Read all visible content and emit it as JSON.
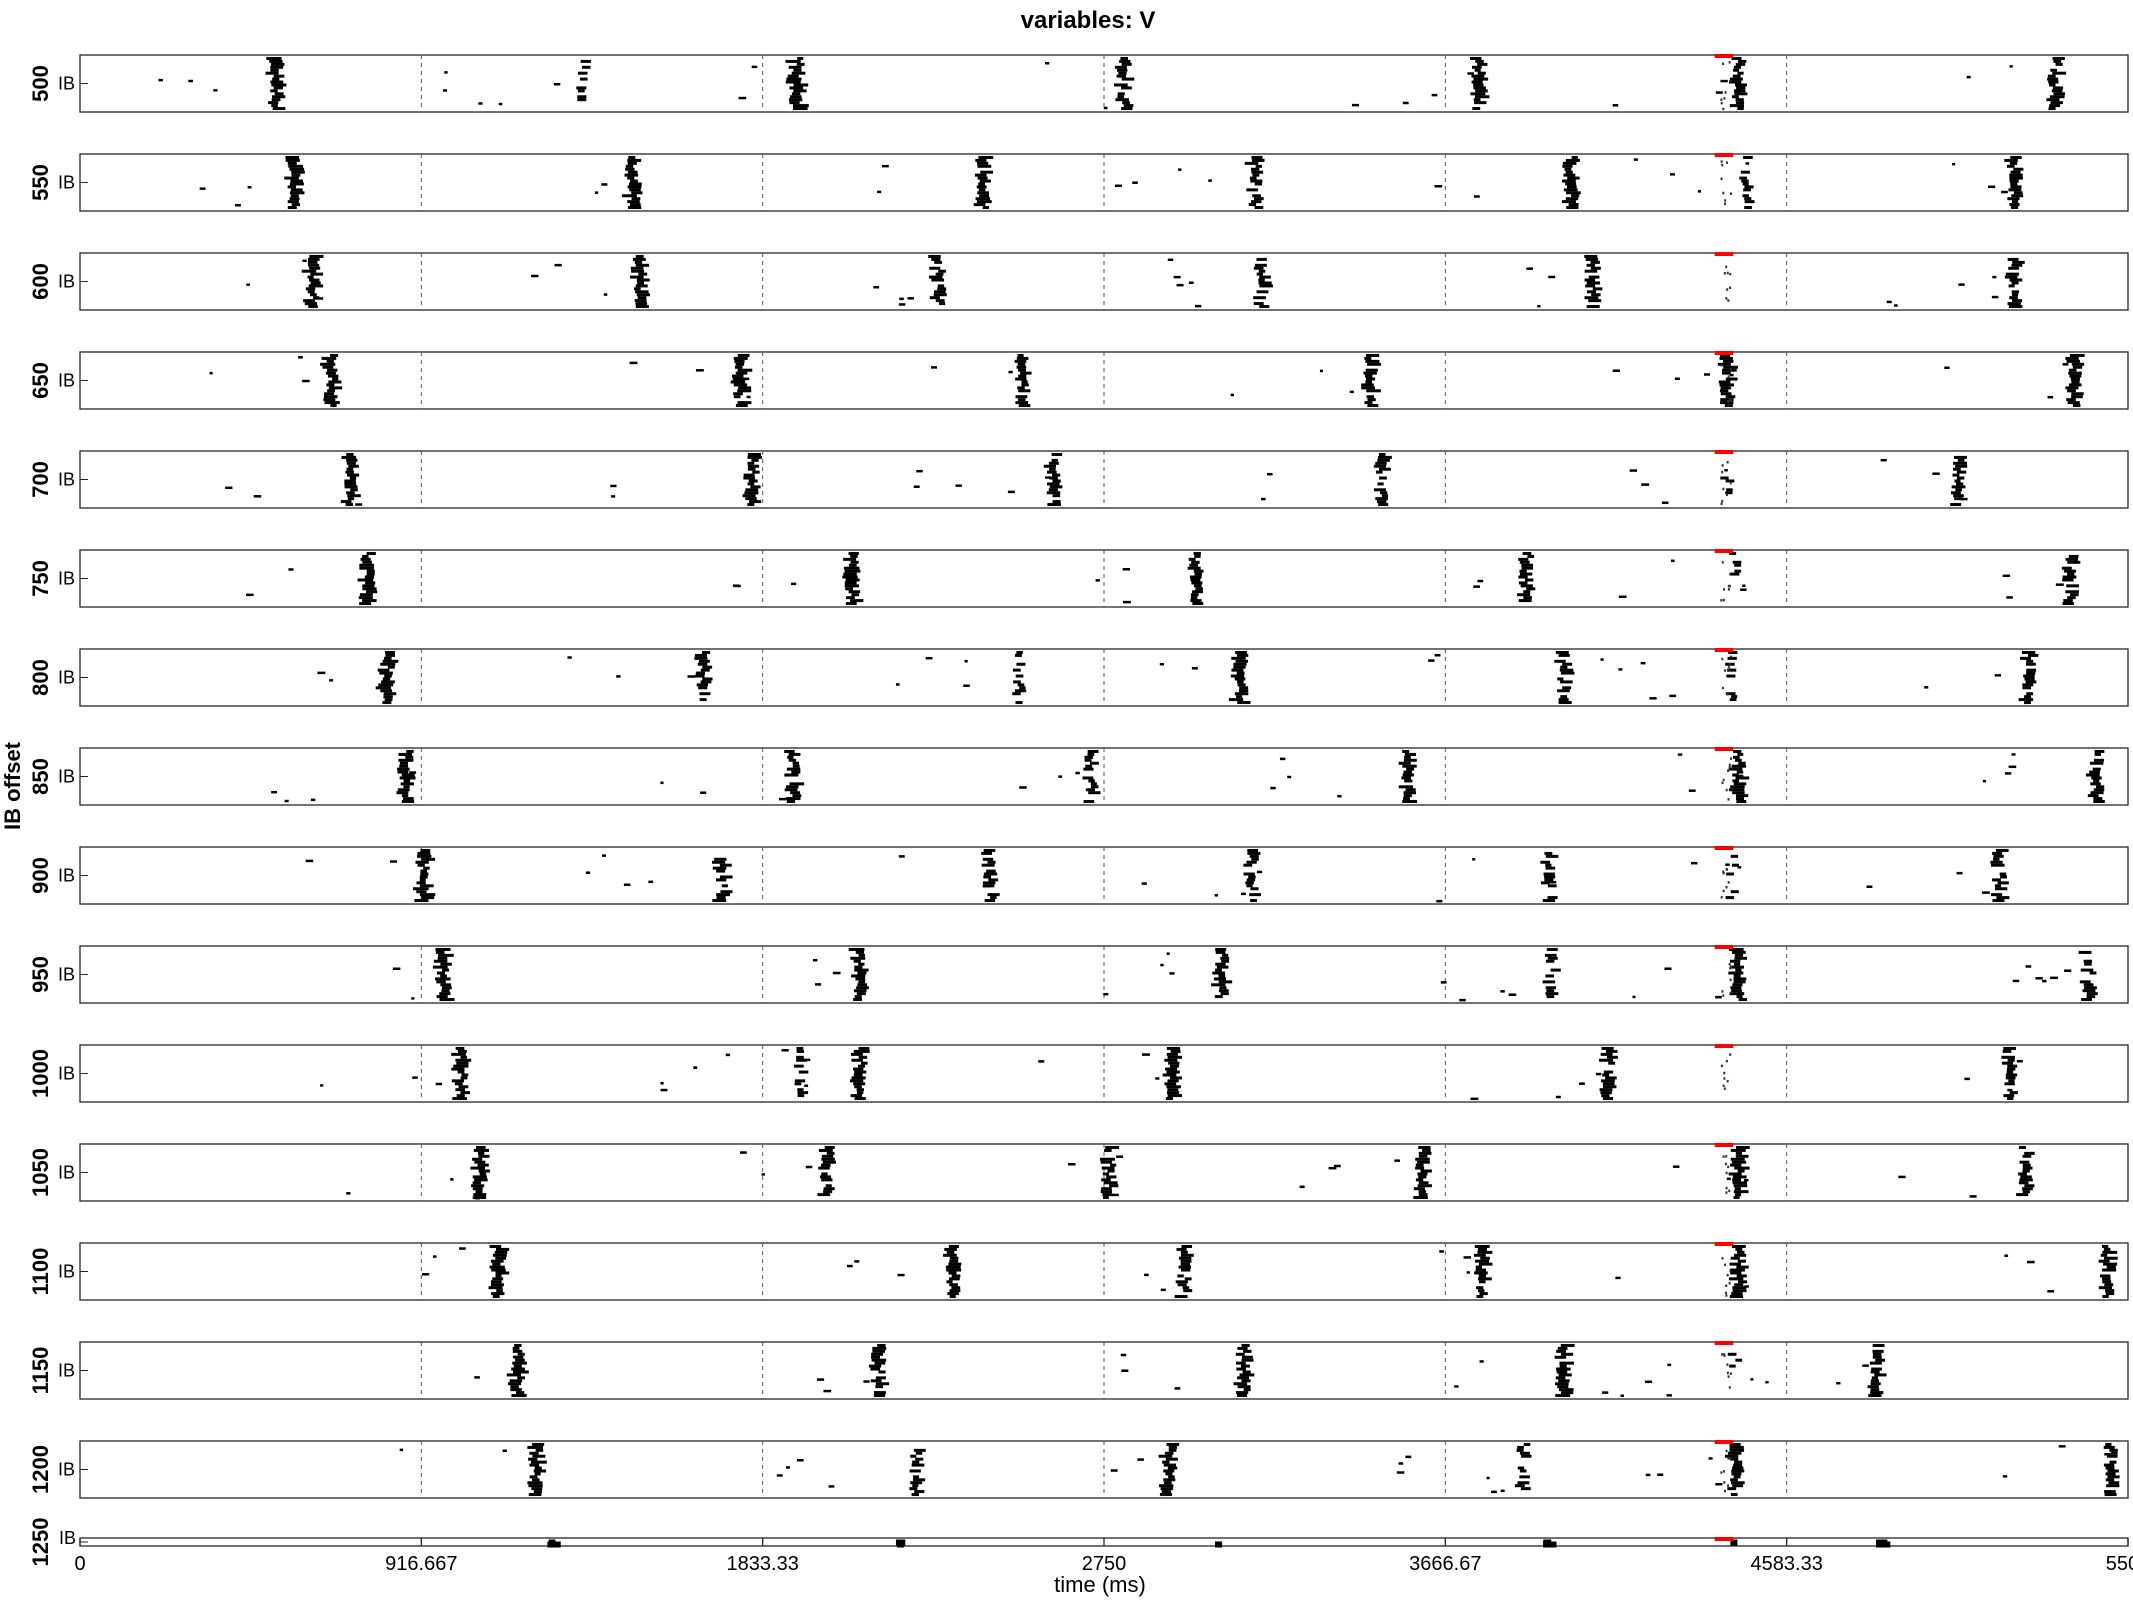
{
  "chart_data": {
    "type": "scatter",
    "title": "variables: V",
    "xlabel": "time (ms)",
    "ylabel": "IB offset",
    "xlim": [
      0,
      5500
    ],
    "x_ticks": [
      0,
      916.667,
      1833.33,
      2750,
      3666.67,
      4583.33,
      5500
    ],
    "x_tick_labels": [
      "0",
      "916.667",
      "1833.33",
      "2750",
      "3666.67",
      "4583.33",
      "5500"
    ],
    "population_label": "IB",
    "stimulus_marker": {
      "color": "#ff0000",
      "x_range": [
        4390,
        4440
      ]
    },
    "marker_color": "#000000",
    "rows": [
      {
        "offset": "500",
        "bursts": [
          [
            520,
            1
          ],
          [
            1350,
            0.5
          ],
          [
            1920,
            1
          ],
          [
            2800,
            0.8
          ],
          [
            3750,
            0.9
          ],
          [
            4450,
            1
          ],
          [
            5300,
            0.9
          ]
        ]
      },
      {
        "offset": "550",
        "bursts": [
          [
            570,
            1
          ],
          [
            1480,
            0.9
          ],
          [
            2420,
            0.9
          ],
          [
            3150,
            0.8
          ],
          [
            4000,
            0.9
          ],
          [
            4470,
            0.4
          ],
          [
            5190,
            0.8
          ]
        ]
      },
      {
        "offset": "600",
        "bursts": [
          [
            620,
            1
          ],
          [
            1500,
            0.8
          ],
          [
            2300,
            0.8
          ],
          [
            3170,
            0.8
          ],
          [
            4060,
            0.8
          ],
          [
            5190,
            0.8
          ]
        ]
      },
      {
        "offset": "650",
        "bursts": [
          [
            670,
            1
          ],
          [
            1770,
            0.9
          ],
          [
            2530,
            0.8
          ],
          [
            3460,
            0.9
          ],
          [
            4420,
            0.9
          ],
          [
            5350,
            0.9
          ]
        ]
      },
      {
        "offset": "700",
        "bursts": [
          [
            720,
            1
          ],
          [
            1800,
            0.9
          ],
          [
            2610,
            0.8
          ],
          [
            3490,
            0.8
          ],
          [
            4420,
            0.3
          ],
          [
            5040,
            0.8
          ]
        ]
      },
      {
        "offset": "750",
        "bursts": [
          [
            770,
            1
          ],
          [
            2070,
            1
          ],
          [
            2990,
            0.9
          ],
          [
            3880,
            0.9
          ],
          [
            4440,
            0.4
          ],
          [
            5340,
            0.8
          ]
        ]
      },
      {
        "offset": "800",
        "bursts": [
          [
            820,
            1
          ],
          [
            1670,
            0.8
          ],
          [
            2520,
            0.6
          ],
          [
            3110,
            0.9
          ],
          [
            3980,
            0.8
          ],
          [
            4430,
            0.4
          ],
          [
            5230,
            0.9
          ]
        ]
      },
      {
        "offset": "850",
        "bursts": [
          [
            870,
            1
          ],
          [
            1910,
            0.9
          ],
          [
            2710,
            0.7
          ],
          [
            3560,
            0.9
          ],
          [
            4450,
            1
          ],
          [
            5410,
            0.8
          ]
        ]
      },
      {
        "offset": "900",
        "bursts": [
          [
            920,
            1
          ],
          [
            1720,
            0.8
          ],
          [
            2440,
            0.8
          ],
          [
            3140,
            0.8
          ],
          [
            3940,
            0.8
          ],
          [
            4430,
            0.3
          ],
          [
            5150,
            0.8
          ]
        ]
      },
      {
        "offset": "950",
        "bursts": [
          [
            970,
            1
          ],
          [
            2090,
            1
          ],
          [
            3060,
            0.9
          ],
          [
            3950,
            0.7
          ],
          [
            4450,
            1
          ],
          [
            5390,
            0.7
          ]
        ]
      },
      {
        "offset": "1000",
        "bursts": [
          [
            1020,
            1
          ],
          [
            2090,
            1
          ],
          [
            1930,
            0.5
          ],
          [
            2930,
            0.9
          ],
          [
            4100,
            0.9
          ],
          [
            5180,
            0.8
          ]
        ]
      },
      {
        "offset": "1050",
        "bursts": [
          [
            1070,
            1
          ],
          [
            2000,
            0.8
          ],
          [
            2760,
            0.9
          ],
          [
            3600,
            0.9
          ],
          [
            4450,
            1
          ],
          [
            5220,
            0.8
          ]
        ]
      },
      {
        "offset": "1100",
        "bursts": [
          [
            1120,
            1
          ],
          [
            2340,
            0.9
          ],
          [
            2960,
            0.7
          ],
          [
            3760,
            0.9
          ],
          [
            4450,
            1
          ],
          [
            5440,
            0.9
          ]
        ]
      },
      {
        "offset": "1150",
        "bursts": [
          [
            1170,
            1
          ],
          [
            2140,
            0.9
          ],
          [
            3120,
            0.9
          ],
          [
            3980,
            0.9
          ],
          [
            4440,
            0.3
          ],
          [
            4820,
            0.9
          ]
        ]
      },
      {
        "offset": "1200",
        "bursts": [
          [
            1220,
            1
          ],
          [
            2240,
            0.7
          ],
          [
            2920,
            0.9
          ],
          [
            3870,
            0.6
          ],
          [
            4440,
            0.9
          ],
          [
            5450,
            0.8
          ]
        ]
      },
      {
        "offset": "1250",
        "bursts": [
          [
            1270,
            1
          ],
          [
            2190,
            0.9
          ],
          [
            3050,
            0.8
          ],
          [
            3940,
            0.8
          ],
          [
            4440,
            0.3
          ],
          [
            4830,
            0.9
          ]
        ]
      }
    ]
  }
}
